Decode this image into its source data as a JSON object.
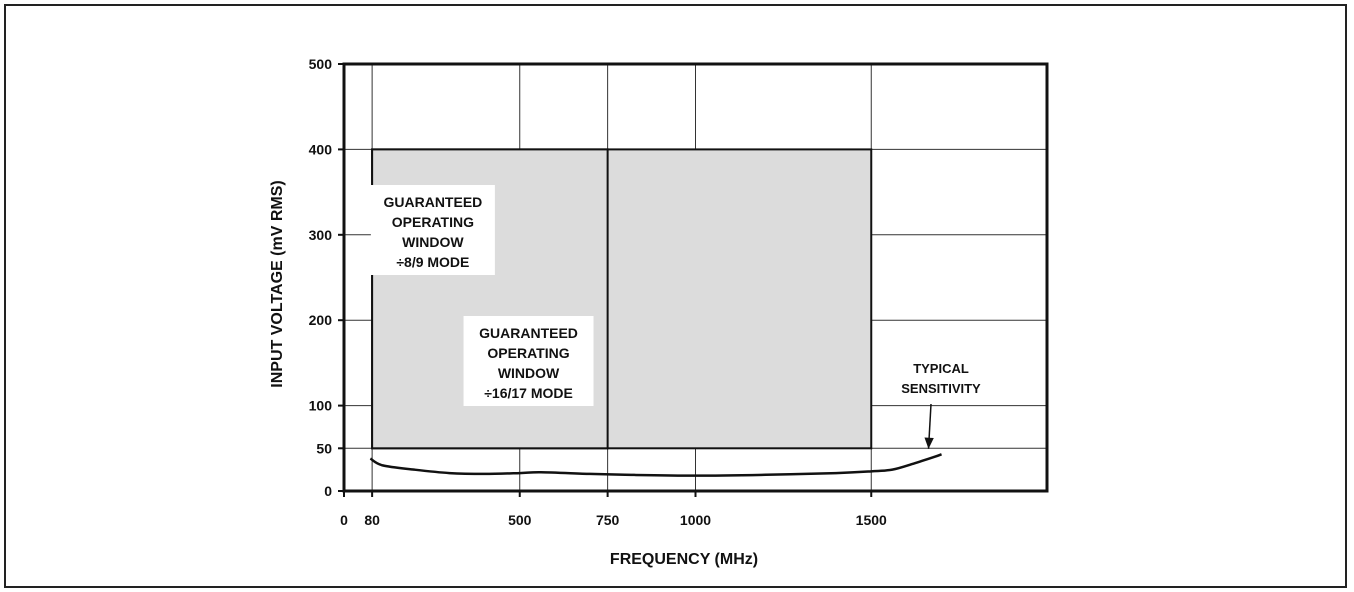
{
  "chart_data": {
    "type": "area",
    "xlabel": "FREQUENCY (MHz)",
    "ylabel": "INPUT VOLTAGE (mV RMS)",
    "x_ticks": [
      0,
      80,
      500,
      750,
      1000,
      1500
    ],
    "y_ticks": [
      0,
      50,
      100,
      200,
      300,
      400,
      500
    ],
    "xlim": [
      0,
      2000
    ],
    "ylim": [
      0,
      500
    ],
    "grid": true,
    "colors": {
      "window_fill": "#dcdcdc",
      "line": "#111111",
      "grid": "#333333"
    },
    "regions": [
      {
        "name": "÷8/9 mode window",
        "x_range": [
          80,
          750
        ],
        "y_range": [
          50,
          400
        ],
        "label_lines": [
          "GUARANTEED",
          "OPERATING",
          "WINDOW",
          "÷8/9 MODE"
        ]
      },
      {
        "name": "÷16/17 mode window",
        "x_range": [
          80,
          1500
        ],
        "y_range": [
          50,
          400
        ],
        "label_lines": [
          "GUARANTEED",
          "OPERATING",
          "WINDOW",
          "÷16/17 MODE"
        ]
      }
    ],
    "series": [
      {
        "name": "TYPICAL SENSITIVITY",
        "x": [
          75,
          110,
          200,
          300,
          400,
          500,
          560,
          700,
          800,
          1000,
          1200,
          1400,
          1500,
          1560,
          1620,
          1680,
          1700
        ],
        "y": [
          38,
          30,
          25,
          21,
          20,
          21,
          22,
          20,
          19,
          18,
          19,
          21,
          23,
          25,
          32,
          40,
          43
        ]
      }
    ],
    "annotations": [
      {
        "text_lines": [
          "TYPICAL",
          "SENSITIVITY"
        ],
        "points_to": [
          1680,
          40
        ]
      }
    ]
  }
}
